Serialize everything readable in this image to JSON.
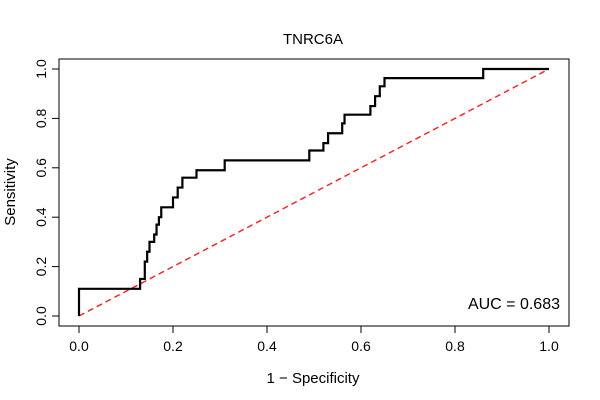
{
  "chart_data": {
    "type": "line",
    "title": "TNRC6A",
    "xlabel": "1 − Specificity",
    "ylabel": "Sensitivity",
    "xlim": [
      0,
      1
    ],
    "ylim": [
      0,
      1
    ],
    "xticks": [
      "0.0",
      "0.2",
      "0.4",
      "0.6",
      "0.8",
      "1.0"
    ],
    "yticks": [
      "0.0",
      "0.2",
      "0.4",
      "0.6",
      "0.8",
      "1.0"
    ],
    "grid": false,
    "annotation": "AUC = 0.683",
    "series": [
      {
        "style": "solid",
        "color": "#000000",
        "points": [
          [
            0.0,
            0.0
          ],
          [
            0.0,
            0.11
          ],
          [
            0.12,
            0.11
          ],
          [
            0.13,
            0.11
          ],
          [
            0.13,
            0.15
          ],
          [
            0.14,
            0.15
          ],
          [
            0.14,
            0.22
          ],
          [
            0.145,
            0.22
          ],
          [
            0.145,
            0.26
          ],
          [
            0.15,
            0.26
          ],
          [
            0.15,
            0.3
          ],
          [
            0.16,
            0.3
          ],
          [
            0.16,
            0.33
          ],
          [
            0.165,
            0.33
          ],
          [
            0.165,
            0.37
          ],
          [
            0.17,
            0.37
          ],
          [
            0.17,
            0.4
          ],
          [
            0.175,
            0.4
          ],
          [
            0.175,
            0.44
          ],
          [
            0.2,
            0.44
          ],
          [
            0.2,
            0.48
          ],
          [
            0.21,
            0.48
          ],
          [
            0.21,
            0.52
          ],
          [
            0.22,
            0.52
          ],
          [
            0.22,
            0.56
          ],
          [
            0.25,
            0.56
          ],
          [
            0.25,
            0.59
          ],
          [
            0.31,
            0.59
          ],
          [
            0.31,
            0.63
          ],
          [
            0.49,
            0.63
          ],
          [
            0.49,
            0.67
          ],
          [
            0.52,
            0.67
          ],
          [
            0.52,
            0.7
          ],
          [
            0.53,
            0.7
          ],
          [
            0.53,
            0.74
          ],
          [
            0.56,
            0.74
          ],
          [
            0.56,
            0.78
          ],
          [
            0.565,
            0.78
          ],
          [
            0.565,
            0.815
          ],
          [
            0.62,
            0.815
          ],
          [
            0.62,
            0.85
          ],
          [
            0.63,
            0.85
          ],
          [
            0.63,
            0.89
          ],
          [
            0.64,
            0.89
          ],
          [
            0.64,
            0.93
          ],
          [
            0.65,
            0.93
          ],
          [
            0.65,
            0.963
          ],
          [
            0.86,
            0.963
          ],
          [
            0.86,
            1.0
          ],
          [
            1.0,
            1.0
          ]
        ]
      },
      {
        "style": "dashed",
        "color": "#ee2c2c",
        "points": [
          [
            0,
            0
          ],
          [
            1,
            1
          ]
        ]
      }
    ]
  }
}
